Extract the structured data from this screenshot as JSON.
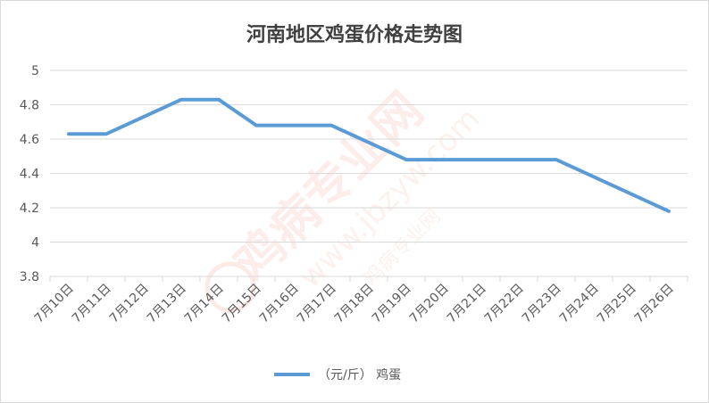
{
  "chart_data": {
    "type": "line",
    "title": "河南地区鸡蛋价格走势图",
    "x": [
      "7月10日",
      "7月11日",
      "7月12日",
      "7月13日",
      "7月14日",
      "7月15日",
      "7月16日",
      "7月17日",
      "7月18日",
      "7月19日",
      "7月20日",
      "7月21日",
      "7月22日",
      "7月23日",
      "7月24日",
      "7月25日",
      "7月26日"
    ],
    "series": [
      {
        "name": "（元/斤） 鸡蛋",
        "color": "#5b9bd5",
        "values": [
          4.63,
          4.63,
          null,
          4.83,
          4.83,
          4.68,
          4.68,
          4.68,
          null,
          4.48,
          4.48,
          4.48,
          4.48,
          4.48,
          null,
          null,
          4.18
        ]
      }
    ],
    "yticks": [
      "3.8",
      "4",
      "4.2",
      "4.4",
      "4.6",
      "4.8",
      "5"
    ],
    "ylim": [
      3.8,
      5
    ],
    "grid": true,
    "legend": "bottom-center",
    "gridline_color": "#d9d9d9"
  },
  "watermark": {
    "brand": "鸡病专业网",
    "url": "www.jbzyw.com",
    "slogan": "鸡病专业网"
  }
}
